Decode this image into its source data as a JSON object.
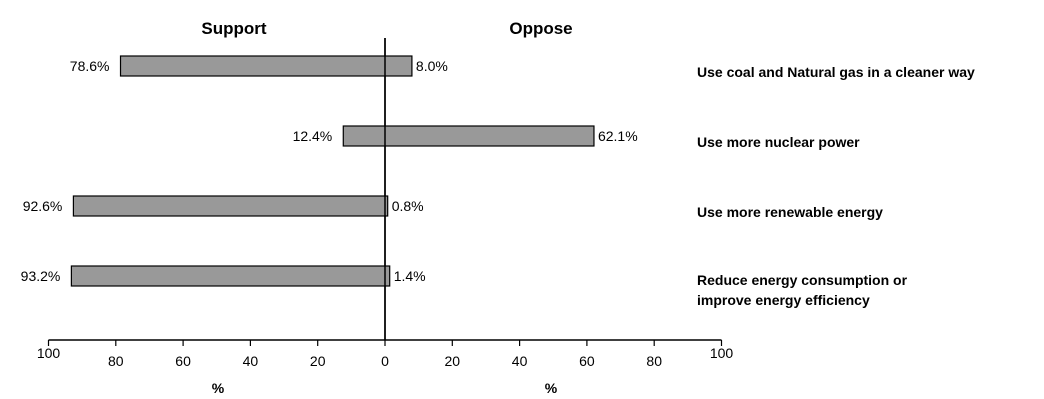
{
  "chart_data": {
    "type": "bar",
    "orientation": "horizontal-diverging",
    "panel_titles": [
      "Support",
      "Oppose"
    ],
    "categories": [
      [
        "Use coal and Natural gas in a cleaner way"
      ],
      [
        "Use more nuclear power"
      ],
      [
        "Use more renewable energy"
      ],
      [
        "Reduce energy consumption or",
        "improve energy efficiency"
      ]
    ],
    "series": [
      {
        "name": "Support",
        "values": [
          78.6,
          12.4,
          92.6,
          93.2
        ],
        "labels": [
          "78.6%",
          "12.4%",
          "92.6%",
          "93.2%"
        ]
      },
      {
        "name": "Oppose",
        "values": [
          8.0,
          62.1,
          0.8,
          1.4
        ],
        "labels": [
          "8.0%",
          "62.1%",
          "0.8%",
          "1.4%"
        ]
      }
    ],
    "xlim_left": [
      100,
      0
    ],
    "xlim_right": [
      0,
      100
    ],
    "x_ticks_left": [
      "100",
      "80",
      "60",
      "40",
      "20",
      "0"
    ],
    "x_ticks_right": [
      "20",
      "40",
      "60",
      "80",
      "100"
    ],
    "xlabel_left": "%",
    "xlabel_right": "%",
    "bar_color": "#999999",
    "bar_edge_color": "#000000",
    "grid": false,
    "legend": "none"
  }
}
